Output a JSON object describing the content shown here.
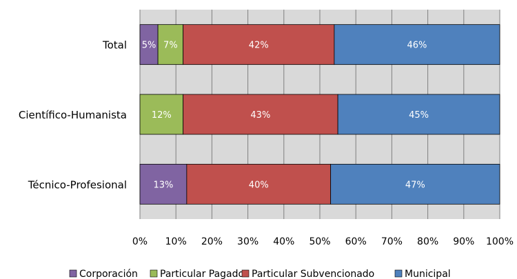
{
  "chart_data": {
    "type": "bar",
    "orientation": "horizontal",
    "stacked": "percent",
    "categories": [
      "Total",
      "Científico-Humanista",
      "Técnico-Profesional"
    ],
    "series": [
      {
        "name": "Corporación",
        "color": "#8064A2",
        "values": [
          5,
          0,
          13
        ]
      },
      {
        "name": "Particular Pagado",
        "color": "#9BBB59",
        "values": [
          7,
          12,
          0
        ]
      },
      {
        "name": "Particular Subvencionado",
        "color": "#C0504D",
        "values": [
          42,
          43,
          40
        ]
      },
      {
        "name": "Municipal",
        "color": "#4F81BD",
        "values": [
          46,
          45,
          47
        ]
      }
    ],
    "data_labels": [
      [
        "5%",
        "7%",
        "42%",
        "46%"
      ],
      [
        "",
        "12%",
        "43%",
        "45%"
      ],
      [
        "13%",
        "",
        "40%",
        "47%"
      ]
    ],
    "x_ticks": [
      "0%",
      "10%",
      "20%",
      "30%",
      "40%",
      "50%",
      "60%",
      "70%",
      "80%",
      "90%",
      "100%"
    ],
    "xlim": [
      0,
      100
    ],
    "grid": true,
    "legend_position": "bottom"
  }
}
